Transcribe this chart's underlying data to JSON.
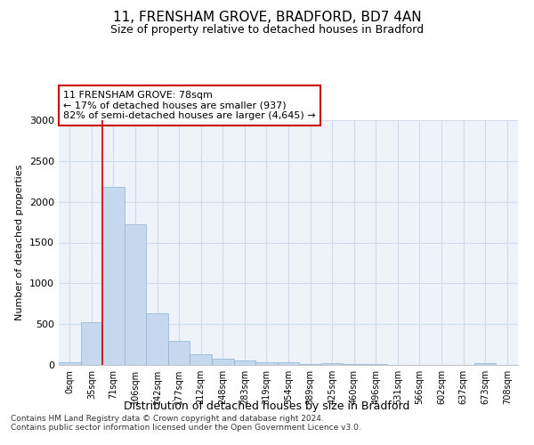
{
  "title_line1": "11, FRENSHAM GROVE, BRADFORD, BD7 4AN",
  "title_line2": "Size of property relative to detached houses in Bradford",
  "xlabel": "Distribution of detached houses by size in Bradford",
  "ylabel": "Number of detached properties",
  "bar_color": "#c5d8ed",
  "bar_edge_color": "#8ab4d4",
  "categories": [
    "0sqm",
    "35sqm",
    "71sqm",
    "106sqm",
    "142sqm",
    "177sqm",
    "212sqm",
    "248sqm",
    "283sqm",
    "319sqm",
    "354sqm",
    "389sqm",
    "425sqm",
    "460sqm",
    "496sqm",
    "531sqm",
    "566sqm",
    "602sqm",
    "637sqm",
    "673sqm",
    "708sqm"
  ],
  "values": [
    30,
    520,
    2180,
    1720,
    635,
    290,
    130,
    80,
    50,
    35,
    35,
    10,
    25,
    10,
    10,
    0,
    0,
    0,
    0,
    20,
    0
  ],
  "ylim": [
    0,
    3000
  ],
  "yticks": [
    0,
    500,
    1000,
    1500,
    2000,
    2500,
    3000
  ],
  "annotation_box_text": "11 FRENSHAM GROVE: 78sqm\n← 17% of detached houses are smaller (937)\n82% of semi-detached houses are larger (4,645) →",
  "vline_x_idx": 1.5,
  "vline_color": "#cc0000",
  "box_edge_color": "#cc0000",
  "footer_text": "Contains HM Land Registry data © Crown copyright and database right 2024.\nContains public sector information licensed under the Open Government Licence v3.0.",
  "grid_color": "#ccddee",
  "background_color": "#eef3fa"
}
